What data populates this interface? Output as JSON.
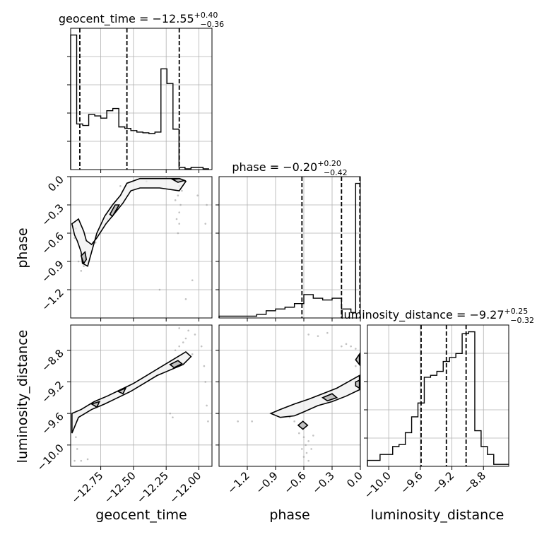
{
  "chart_data": {
    "type": "corner",
    "grid": true,
    "colors": {
      "line": "#000000",
      "grid": "#b0b0b0",
      "scatter": "#9a9a9a",
      "fill": "#bdbdbd"
    },
    "parameters": [
      {
        "name": "geocent_time",
        "title": "geocent_time = −12.55",
        "sup": "+0.40",
        "sub": "−0.36",
        "axis_label": "geocent_time",
        "range": [
          -12.98,
          -11.9
        ],
        "quantiles": [
          -12.91,
          -12.55,
          -12.15
        ],
        "ticks": [
          -12.75,
          -12.5,
          -12.25,
          -12.0
        ],
        "tick_labels": [
          "−12.75",
          "−12.50",
          "−12.25",
          "−12.00"
        ],
        "hist_edges": [
          -12.98,
          -12.934,
          -12.888,
          -12.842,
          -12.796,
          -12.75,
          -12.704,
          -12.658,
          -12.612,
          -12.566,
          -12.52,
          -12.474,
          -12.428,
          -12.382,
          -12.336,
          -12.29,
          -12.244,
          -12.198,
          -12.152,
          -12.106,
          -12.06,
          -12.014,
          -11.968,
          -11.922
        ],
        "hist_counts": [
          183,
          62,
          60,
          75,
          73,
          70,
          80,
          83,
          58,
          56,
          53,
          51,
          50,
          49,
          51,
          137,
          117,
          55,
          3,
          1,
          3,
          3,
          1
        ]
      },
      {
        "name": "phase",
        "title": "phase = −0.20",
        "sup": "+0.20",
        "sub": "−0.42",
        "axis_label": "phase",
        "range": [
          -1.5,
          0.0
        ],
        "quantiles": [
          -0.62,
          -0.2,
          -0.005
        ],
        "ticks": [
          -1.2,
          -0.9,
          -0.6,
          -0.3,
          0.0
        ],
        "tick_labels": [
          "−1.2",
          "−0.9",
          "−0.6",
          "−0.3",
          "0.0"
        ],
        "hist_edges": [
          -1.5,
          -1.4,
          -1.3,
          -1.2,
          -1.1,
          -1.0,
          -0.9,
          -0.8,
          -0.7,
          -0.6,
          -0.5,
          -0.4,
          -0.3,
          -0.2,
          -0.1,
          -0.05,
          0.0
        ],
        "hist_counts": [
          1,
          1,
          1,
          1,
          2,
          4,
          5,
          6,
          8,
          13,
          11,
          10,
          11,
          5,
          3,
          75
        ]
      },
      {
        "name": "luminosity_distance",
        "title": "luminosity_distance = −9.27",
        "sup": "+0.25",
        "sub": "−0.32",
        "axis_label": "luminosity_distance",
        "range": [
          -10.27,
          -8.48
        ],
        "quantiles": [
          -9.59,
          -9.27,
          -9.02
        ],
        "ticks": [
          -10.0,
          -9.6,
          -9.2,
          -8.8
        ],
        "tick_labels": [
          "−10.0",
          "−9.6",
          "−9.2",
          "−8.8"
        ],
        "hist_edges": [
          -10.27,
          -10.19,
          -10.11,
          -10.03,
          -9.95,
          -9.87,
          -9.79,
          -9.71,
          -9.63,
          -9.55,
          -9.47,
          -9.39,
          -9.31,
          -9.23,
          -9.15,
          -9.07,
          -8.99,
          -8.91,
          -8.83,
          -8.75,
          -8.67,
          -8.59,
          -8.48
        ],
        "hist_counts": [
          3,
          3,
          6,
          6,
          10,
          11,
          17,
          25,
          32,
          45,
          46,
          48,
          53,
          55,
          57,
          67,
          68,
          18,
          10,
          6,
          1,
          1
        ]
      }
    ],
    "pairs": [
      {
        "x": "geocent_time",
        "y": "phase",
        "contours": [
          [
            [
              -12.97,
              -0.5
            ],
            [
              -12.95,
              -0.62
            ],
            [
              -12.93,
              -0.68
            ],
            [
              -12.9,
              -0.8
            ],
            [
              -12.89,
              -0.92
            ],
            [
              -12.85,
              -0.95
            ],
            [
              -12.82,
              -0.8
            ],
            [
              -12.78,
              -0.6
            ],
            [
              -12.72,
              -0.42
            ],
            [
              -12.66,
              -0.3
            ],
            [
              -12.6,
              -0.2
            ],
            [
              -12.55,
              -0.07
            ],
            [
              -12.45,
              -0.02
            ],
            [
              -12.3,
              -0.02
            ],
            [
              -12.15,
              -0.02
            ],
            [
              -12.1,
              -0.05
            ],
            [
              -12.15,
              -0.15
            ],
            [
              -12.3,
              -0.12
            ],
            [
              -12.45,
              -0.12
            ],
            [
              -12.52,
              -0.15
            ],
            [
              -12.58,
              -0.28
            ],
            [
              -12.65,
              -0.4
            ],
            [
              -12.71,
              -0.5
            ],
            [
              -12.78,
              -0.65
            ],
            [
              -12.82,
              -0.72
            ],
            [
              -12.86,
              -0.68
            ],
            [
              -12.88,
              -0.58
            ],
            [
              -12.92,
              -0.45
            ],
            [
              -12.97,
              -0.5
            ]
          ],
          [
            [
              -12.9,
              -0.84
            ],
            [
              -12.87,
              -0.8
            ],
            [
              -12.86,
              -0.88
            ],
            [
              -12.88,
              -0.92
            ],
            [
              -12.9,
              -0.84
            ]
          ],
          [
            [
              -12.68,
              -0.4
            ],
            [
              -12.64,
              -0.3
            ],
            [
              -12.61,
              -0.3
            ],
            [
              -12.66,
              -0.42
            ],
            [
              -12.68,
              -0.4
            ]
          ],
          [
            [
              -12.2,
              -0.03
            ],
            [
              -12.15,
              -0.02
            ],
            [
              -12.11,
              -0.04
            ],
            [
              -12.16,
              -0.06
            ],
            [
              -12.2,
              -0.03
            ]
          ]
        ],
        "points": [
          [
            -12.15,
            -0.1
          ],
          [
            -12.16,
            -0.2
          ],
          [
            -12.14,
            -0.3
          ],
          [
            -12.15,
            -0.38
          ],
          [
            -12.17,
            -0.45
          ],
          [
            -12.15,
            -0.5
          ],
          [
            -12.16,
            -0.6
          ],
          [
            -12.18,
            -0.25
          ],
          [
            -12.13,
            -0.15
          ],
          [
            -12.9,
            -1.0
          ],
          [
            -12.88,
            -0.95
          ],
          [
            -12.92,
            -0.9
          ],
          [
            -12.94,
            -0.55
          ],
          [
            -12.95,
            -0.65
          ],
          [
            -12.79,
            -0.7
          ],
          [
            -12.76,
            -0.6
          ],
          [
            -12.7,
            -0.45
          ],
          [
            -12.65,
            -0.35
          ],
          [
            -12.05,
            -1.1
          ],
          [
            -11.95,
            -0.5
          ],
          [
            -11.94,
            -0.3
          ],
          [
            -12.01,
            -0.2
          ],
          [
            -12.1,
            -1.3
          ],
          [
            -12.3,
            -1.2
          ],
          [
            -12.6,
            -0.1
          ],
          [
            -12.5,
            -0.05
          ],
          [
            -12.4,
            -0.05
          ]
        ]
      },
      {
        "x": "geocent_time",
        "y": "luminosity_distance",
        "contours": [
          [
            [
              -12.97,
              -9.6
            ],
            [
              -12.9,
              -9.55
            ],
            [
              -12.8,
              -9.45
            ],
            [
              -12.7,
              -9.38
            ],
            [
              -12.6,
              -9.3
            ],
            [
              -12.5,
              -9.22
            ],
            [
              -12.4,
              -9.12
            ],
            [
              -12.3,
              -9.02
            ],
            [
              -12.2,
              -8.92
            ],
            [
              -12.1,
              -8.82
            ],
            [
              -12.06,
              -8.88
            ],
            [
              -12.12,
              -8.98
            ],
            [
              -12.22,
              -9.05
            ],
            [
              -12.32,
              -9.12
            ],
            [
              -12.42,
              -9.22
            ],
            [
              -12.52,
              -9.32
            ],
            [
              -12.62,
              -9.4
            ],
            [
              -12.72,
              -9.48
            ],
            [
              -12.82,
              -9.55
            ],
            [
              -12.92,
              -9.65
            ],
            [
              -12.97,
              -9.85
            ],
            [
              -12.97,
              -9.6
            ]
          ],
          [
            [
              -12.82,
              -9.48
            ],
            [
              -12.76,
              -9.45
            ],
            [
              -12.78,
              -9.52
            ],
            [
              -12.82,
              -9.48
            ]
          ],
          [
            [
              -12.62,
              -9.32
            ],
            [
              -12.56,
              -9.28
            ],
            [
              -12.58,
              -9.35
            ],
            [
              -12.62,
              -9.32
            ]
          ],
          [
            [
              -12.22,
              -8.98
            ],
            [
              -12.16,
              -8.93
            ],
            [
              -12.13,
              -8.97
            ],
            [
              -12.19,
              -9.02
            ],
            [
              -12.22,
              -8.98
            ]
          ]
        ],
        "points": [
          [
            -12.15,
            -8.75
          ],
          [
            -12.12,
            -8.7
          ],
          [
            -12.1,
            -8.65
          ],
          [
            -12.18,
            -8.8
          ],
          [
            -12.08,
            -8.55
          ],
          [
            -12.03,
            -8.6
          ],
          [
            -11.98,
            -8.75
          ],
          [
            -11.96,
            -9.0
          ],
          [
            -11.95,
            -9.2
          ],
          [
            -11.94,
            -9.5
          ],
          [
            -11.93,
            -9.7
          ],
          [
            -12.2,
            -9.65
          ],
          [
            -12.22,
            -9.6
          ],
          [
            -12.95,
            -10.2
          ],
          [
            -12.9,
            -10.2
          ],
          [
            -12.85,
            -10.18
          ],
          [
            -12.94,
            -9.9
          ],
          [
            -12.93,
            -10.05
          ],
          [
            -12.15,
            -8.52
          ],
          [
            -12.05,
            -8.85
          ]
        ]
      },
      {
        "x": "phase",
        "y": "luminosity_distance",
        "contours": [
          [
            [
              -0.95,
              -9.6
            ],
            [
              -0.85,
              -9.55
            ],
            [
              -0.7,
              -9.48
            ],
            [
              -0.55,
              -9.42
            ],
            [
              -0.4,
              -9.35
            ],
            [
              -0.25,
              -9.28
            ],
            [
              -0.1,
              -9.18
            ],
            [
              -0.01,
              -9.12
            ],
            [
              -0.01,
              -9.3
            ],
            [
              -0.15,
              -9.38
            ],
            [
              -0.3,
              -9.45
            ],
            [
              -0.45,
              -9.5
            ],
            [
              -0.6,
              -9.58
            ],
            [
              -0.7,
              -9.63
            ],
            [
              -0.85,
              -9.65
            ],
            [
              -0.95,
              -9.6
            ]
          ],
          [
            [
              -0.4,
              -9.4
            ],
            [
              -0.3,
              -9.35
            ],
            [
              -0.25,
              -9.4
            ],
            [
              -0.35,
              -9.44
            ],
            [
              -0.4,
              -9.4
            ]
          ],
          [
            [
              -0.05,
              -9.2
            ],
            [
              -0.01,
              -9.18
            ],
            [
              -0.01,
              -9.28
            ],
            [
              -0.05,
              -9.25
            ],
            [
              -0.05,
              -9.2
            ]
          ],
          [
            [
              -0.01,
              -8.98
            ],
            [
              -0.05,
              -8.92
            ],
            [
              -0.01,
              -8.85
            ],
            [
              -0.01,
              -8.98
            ]
          ],
          [
            [
              -0.66,
              -9.75
            ],
            [
              -0.61,
              -9.7
            ],
            [
              -0.56,
              -9.75
            ],
            [
              -0.61,
              -9.8
            ],
            [
              -0.66,
              -9.75
            ]
          ]
        ],
        "points": [
          [
            -0.6,
            -9.9
          ],
          [
            -0.58,
            -10.0
          ],
          [
            -0.62,
            -10.05
          ],
          [
            -0.55,
            -9.95
          ],
          [
            -0.57,
            -10.1
          ],
          [
            -0.6,
            -10.15
          ],
          [
            -0.52,
            -10.05
          ],
          [
            -0.65,
            -9.85
          ],
          [
            -0.55,
            -10.2
          ],
          [
            -0.5,
            -9.88
          ],
          [
            -0.7,
            -9.7
          ],
          [
            -0.75,
            -9.65
          ],
          [
            -0.55,
            -8.6
          ],
          [
            -0.45,
            -8.62
          ],
          [
            -0.35,
            -8.58
          ],
          [
            -0.2,
            -8.75
          ],
          [
            -0.1,
            -8.75
          ],
          [
            -0.05,
            -8.78
          ],
          [
            -0.15,
            -8.72
          ],
          [
            -1.3,
            -9.7
          ],
          [
            -1.15,
            -9.7
          ],
          [
            -0.05,
            -9.0
          ]
        ]
      }
    ]
  }
}
